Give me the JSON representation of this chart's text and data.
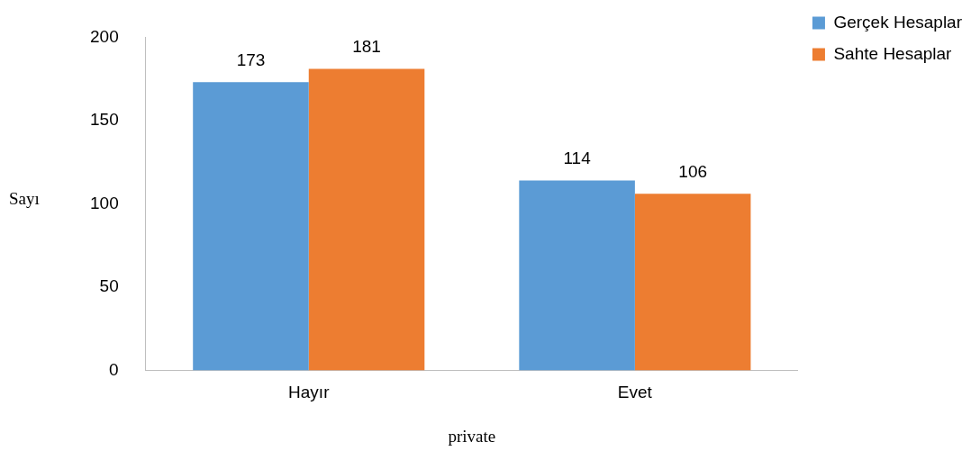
{
  "chart_data": {
    "type": "bar",
    "xlabel": "private",
    "ylabel": "Sayı",
    "categories": [
      "Hayır",
      "Evet"
    ],
    "series": [
      {
        "name": "Gerçek Hesaplar",
        "color": "#5b9bd5",
        "values": [
          173,
          114
        ]
      },
      {
        "name": "Sahte Hesaplar",
        "color": "#ed7d31",
        "values": [
          181,
          106
        ]
      }
    ],
    "ylim": [
      0,
      200
    ],
    "yticks": [
      0,
      50,
      100,
      150,
      200
    ],
    "grid": false,
    "legend": "top right",
    "data_labels": true
  }
}
